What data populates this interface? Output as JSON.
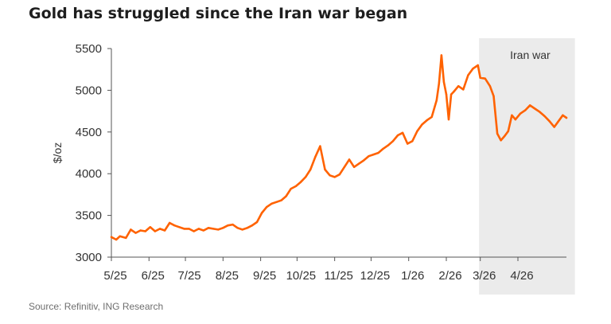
{
  "title": "Gold has struggled since the Iran war began",
  "source": "Source: Refinitiv, ING Research",
  "colors": {
    "line": "#ff6200",
    "shade": "#ebebeb",
    "axis": "#555555",
    "text": "#333333"
  },
  "chart_data": {
    "type": "line",
    "title": "Gold has struggled since the Iran war began",
    "xlabel": "",
    "ylabel": "$/oz",
    "ylim": [
      3000,
      5500
    ],
    "yticks": [
      3000,
      3500,
      4000,
      4500,
      5000,
      5500
    ],
    "xlim": [
      "2025-05-01",
      "2026-05-11"
    ],
    "xticks": [
      {
        "date": "2025-05-01",
        "label": "5/25"
      },
      {
        "date": "2025-06-01",
        "label": "6/25"
      },
      {
        "date": "2025-07-01",
        "label": "7/25"
      },
      {
        "date": "2025-08-01",
        "label": "8/25"
      },
      {
        "date": "2025-09-01",
        "label": "9/25"
      },
      {
        "date": "2025-10-01",
        "label": "10/25"
      },
      {
        "date": "2025-11-01",
        "label": "11/25"
      },
      {
        "date": "2025-12-01",
        "label": "12/25"
      },
      {
        "date": "2026-01-01",
        "label": "1/26"
      },
      {
        "date": "2026-02-01",
        "label": "2/26"
      },
      {
        "date": "2026-03-01",
        "label": "3/26"
      },
      {
        "date": "2026-04-01",
        "label": "4/26"
      }
    ],
    "grid": false,
    "legend": "none",
    "shaded_region": {
      "start": "2026-02-28",
      "end": "2026-05-18",
      "label": "Iran war"
    },
    "series": [
      {
        "name": "",
        "x": [
          "2025-05-01",
          "2025-05-05",
          "2025-05-08",
          "2025-05-13",
          "2025-05-17",
          "2025-05-21",
          "2025-05-25",
          "2025-05-29",
          "2025-06-02",
          "2025-06-06",
          "2025-06-10",
          "2025-06-14",
          "2025-06-18",
          "2025-06-22",
          "2025-06-26",
          "2025-06-30",
          "2025-07-04",
          "2025-07-08",
          "2025-07-12",
          "2025-07-16",
          "2025-07-20",
          "2025-07-24",
          "2025-07-28",
          "2025-08-01",
          "2025-08-05",
          "2025-08-09",
          "2025-08-13",
          "2025-08-17",
          "2025-08-21",
          "2025-08-25",
          "2025-08-29",
          "2025-09-02",
          "2025-09-06",
          "2025-09-10",
          "2025-09-14",
          "2025-09-18",
          "2025-09-22",
          "2025-09-26",
          "2025-09-30",
          "2025-10-04",
          "2025-10-08",
          "2025-10-12",
          "2025-10-16",
          "2025-10-20",
          "2025-10-24",
          "2025-10-28",
          "2025-11-01",
          "2025-11-05",
          "2025-11-09",
          "2025-11-13",
          "2025-11-17",
          "2025-11-21",
          "2025-11-25",
          "2025-11-29",
          "2025-12-03",
          "2025-12-07",
          "2025-12-11",
          "2025-12-15",
          "2025-12-19",
          "2025-12-23",
          "2025-12-27",
          "2025-12-31",
          "2026-01-04",
          "2026-01-08",
          "2026-01-12",
          "2026-01-16",
          "2026-01-20",
          "2026-01-24",
          "2026-01-26",
          "2026-01-28",
          "2026-01-30",
          "2026-02-01",
          "2026-02-03",
          "2026-02-05",
          "2026-02-07",
          "2026-02-11",
          "2026-02-15",
          "2026-02-19",
          "2026-02-23",
          "2026-02-27",
          "2026-03-01",
          "2026-03-05",
          "2026-03-09",
          "2026-03-12",
          "2026-03-15",
          "2026-03-18",
          "2026-03-21",
          "2026-03-24",
          "2026-03-27",
          "2026-03-30",
          "2026-04-03",
          "2026-04-07",
          "2026-04-11",
          "2026-04-15",
          "2026-04-19",
          "2026-04-23",
          "2026-04-27",
          "2026-05-01",
          "2026-05-04",
          "2026-05-08",
          "2026-05-11"
        ],
        "values": [
          3240,
          3210,
          3250,
          3230,
          3330,
          3290,
          3320,
          3310,
          3360,
          3310,
          3340,
          3320,
          3410,
          3380,
          3360,
          3340,
          3340,
          3310,
          3340,
          3320,
          3350,
          3340,
          3330,
          3350,
          3380,
          3390,
          3350,
          3330,
          3350,
          3380,
          3420,
          3530,
          3600,
          3640,
          3660,
          3680,
          3730,
          3820,
          3850,
          3900,
          3960,
          4050,
          4200,
          4330,
          4050,
          3980,
          3960,
          3990,
          4080,
          4170,
          4080,
          4120,
          4160,
          4210,
          4230,
          4250,
          4300,
          4340,
          4390,
          4460,
          4490,
          4360,
          4390,
          4510,
          4590,
          4640,
          4680,
          4880,
          5080,
          5420,
          5100,
          4950,
          4650,
          4950,
          4980,
          5050,
          5010,
          5180,
          5260,
          5300,
          5150,
          5140,
          5050,
          4930,
          4480,
          4400,
          4450,
          4510,
          4700,
          4650,
          4720,
          4760,
          4820,
          4780,
          4740,
          4690,
          4630,
          4560,
          4620,
          4700,
          4670
        ]
      }
    ]
  }
}
